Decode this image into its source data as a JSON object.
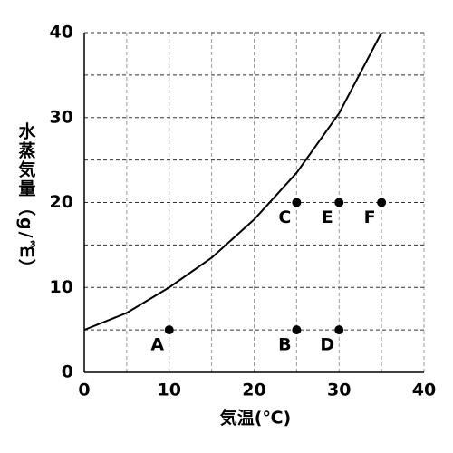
{
  "chart_data": {
    "type": "line",
    "xlabel": "気温(℃)",
    "ylabel": "水蒸気量（g/㎥）",
    "xlim": [
      0,
      40
    ],
    "ylim": [
      0,
      40
    ],
    "xticks": [
      0,
      10,
      20,
      30,
      40
    ],
    "yticks": [
      0,
      10,
      20,
      30,
      40
    ],
    "x_grid": [
      5,
      10,
      15,
      20,
      25,
      30,
      35,
      40
    ],
    "y_grid": [
      5,
      10,
      15,
      20,
      25,
      30,
      35,
      40
    ],
    "series": [
      {
        "color": "#000000",
        "x": [
          0,
          5,
          10,
          15,
          20,
          25,
          30,
          35
        ],
        "values": [
          5,
          7,
          10,
          13.5,
          18,
          23.5,
          30.5,
          40
        ]
      }
    ],
    "points": [
      {
        "label": "A",
        "x": 10,
        "y": 5
      },
      {
        "label": "B",
        "x": 25,
        "y": 5
      },
      {
        "label": "C",
        "x": 25,
        "y": 20
      },
      {
        "label": "D",
        "x": 30,
        "y": 5
      },
      {
        "label": "E",
        "x": 30,
        "y": 20
      },
      {
        "label": "F",
        "x": 35,
        "y": 20
      }
    ]
  }
}
